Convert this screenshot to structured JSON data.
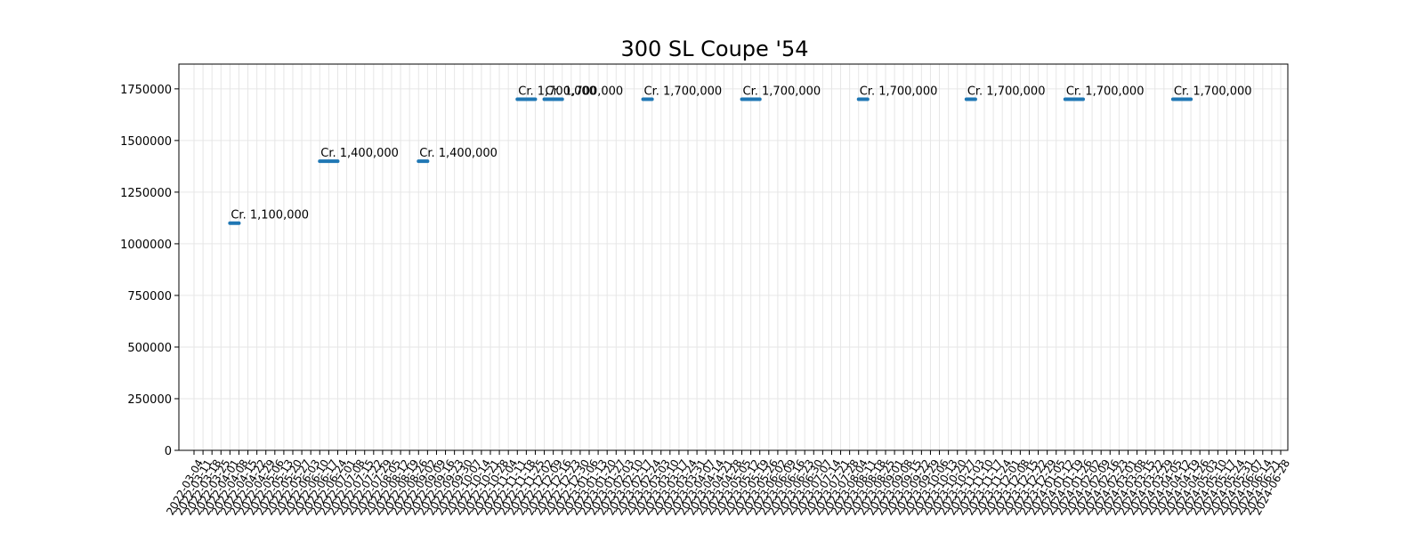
{
  "chart_data": {
    "type": "line",
    "title": "300 SL Coupe '54",
    "xlabel": "",
    "ylabel": "",
    "ylim": [
      0,
      1870000
    ],
    "grid": true,
    "y_ticks": [
      0,
      250000,
      500000,
      750000,
      1000000,
      1250000,
      1500000,
      1750000
    ],
    "x_tick_labels": [
      "2022-03-04",
      "2022-03-11",
      "2022-03-18",
      "2022-03-25",
      "2022-04-01",
      "2022-04-08",
      "2022-04-15",
      "2022-04-22",
      "2022-04-29",
      "2022-05-06",
      "2022-05-13",
      "2022-05-20",
      "2022-05-27",
      "2022-06-03",
      "2022-06-10",
      "2022-06-17",
      "2022-06-24",
      "2022-07-01",
      "2022-07-08",
      "2022-07-15",
      "2022-07-22",
      "2022-07-29",
      "2022-08-05",
      "2022-08-12",
      "2022-08-19",
      "2022-08-26",
      "2022-09-02",
      "2022-09-09",
      "2022-09-16",
      "2022-09-23",
      "2022-09-30",
      "2022-10-07",
      "2022-10-14",
      "2022-10-21",
      "2022-10-28",
      "2022-11-04",
      "2022-11-11",
      "2022-11-18",
      "2022-11-25",
      "2022-12-02",
      "2022-12-09",
      "2022-12-16",
      "2022-12-23",
      "2022-12-30",
      "2023-01-06",
      "2023-01-13",
      "2023-01-20",
      "2023-01-27",
      "2023-02-03",
      "2023-02-10",
      "2023-02-17",
      "2023-02-24",
      "2023-03-03",
      "2023-03-10",
      "2023-03-17",
      "2023-03-24",
      "2023-03-31",
      "2023-04-07",
      "2023-04-14",
      "2023-04-21",
      "2023-04-28",
      "2023-05-05",
      "2023-05-12",
      "2023-05-19",
      "2023-05-26",
      "2023-06-02",
      "2023-06-09",
      "2023-06-16",
      "2023-06-23",
      "2023-06-30",
      "2023-07-07",
      "2023-07-14",
      "2023-07-21",
      "2023-07-28",
      "2023-08-04",
      "2023-08-11",
      "2023-08-18",
      "2023-08-25",
      "2023-09-01",
      "2023-09-08",
      "2023-09-15",
      "2023-09-22",
      "2023-09-29",
      "2023-10-06",
      "2023-10-13",
      "2023-10-20",
      "2023-10-27",
      "2023-11-03",
      "2023-11-10",
      "2023-11-17",
      "2023-11-24",
      "2023-12-01",
      "2023-12-08",
      "2023-12-15",
      "2023-12-22",
      "2023-12-29",
      "2024-01-05",
      "2024-01-12",
      "2024-01-19",
      "2024-01-26",
      "2024-02-02",
      "2024-02-09",
      "2024-02-16",
      "2024-02-23",
      "2024-03-01",
      "2024-03-08",
      "2024-03-15",
      "2024-03-22",
      "2024-03-29",
      "2024-04-05",
      "2024-04-12",
      "2024-04-19",
      "2024-04-26",
      "2024-05-03",
      "2024-05-10",
      "2024-05-17",
      "2024-05-24",
      "2024-05-31",
      "2024-06-07",
      "2024-06-14",
      "2024-06-21",
      "2024-06-28"
    ],
    "series": [
      {
        "color": "#1f77b4",
        "segments": [
          {
            "x_start": "2022-04-01",
            "x_end": "2022-04-08",
            "y": 1100000,
            "label": "Cr. 1,100,000"
          },
          {
            "x_start": "2022-06-10",
            "x_end": "2022-06-24",
            "y": 1400000,
            "label": "Cr. 1,400,000"
          },
          {
            "x_start": "2022-08-26",
            "x_end": "2022-09-02",
            "y": 1400000,
            "label": "Cr. 1,400,000"
          },
          {
            "x_start": "2022-11-11",
            "x_end": "2022-11-25",
            "y": 1700000,
            "label": "Cr. 1,700,000"
          },
          {
            "x_start": "2022-12-02",
            "x_end": "2022-12-16",
            "y": 1700000,
            "label": "Cr. 1,700,000"
          },
          {
            "x_start": "2023-02-17",
            "x_end": "2023-02-24",
            "y": 1700000,
            "label": "Cr. 1,700,000"
          },
          {
            "x_start": "2023-05-05",
            "x_end": "2023-05-19",
            "y": 1700000,
            "label": "Cr. 1,700,000"
          },
          {
            "x_start": "2023-08-04",
            "x_end": "2023-08-11",
            "y": 1700000,
            "label": "Cr. 1,700,000"
          },
          {
            "x_start": "2023-10-27",
            "x_end": "2023-11-03",
            "y": 1700000,
            "label": "Cr. 1,700,000"
          },
          {
            "x_start": "2024-01-12",
            "x_end": "2024-01-26",
            "y": 1700000,
            "label": "Cr. 1,700,000"
          },
          {
            "x_start": "2024-04-05",
            "x_end": "2024-04-19",
            "y": 1700000,
            "label": "Cr. 1,700,000"
          }
        ]
      }
    ]
  }
}
